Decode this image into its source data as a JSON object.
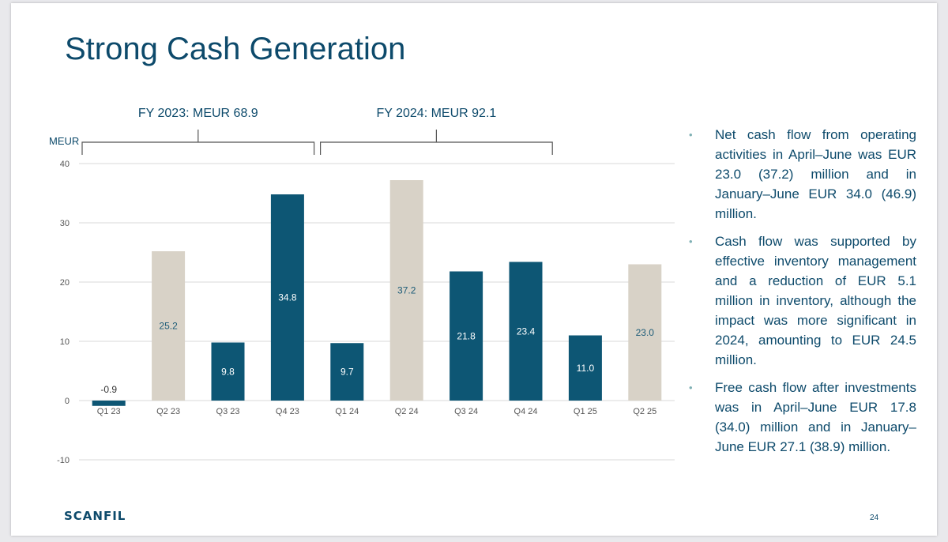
{
  "slide": {
    "title": "Strong Cash Generation",
    "logo": "SCANFIL",
    "page_number": "24"
  },
  "bullets": [
    "Net cash flow from operating activities in April–June was EUR 23.0 (37.2) million and in January–June EUR 34.0 (46.9) million.",
    "Cash flow was supported by effective inventory management and a reduction of EUR 5.1 million in inventory, although the impact was more significant in 2024, amounting to EUR 24.5 million.",
    "Free cash flow after investments was in April–June EUR 17.8 (34.0) million and in January–June EUR 27.1 (38.9) million."
  ],
  "chart_data": {
    "type": "bar",
    "ylabel": "MEUR",
    "ylim": [
      -10,
      40
    ],
    "yticks": [
      -10,
      0,
      10,
      20,
      30,
      40
    ],
    "grid": true,
    "categories": [
      "Q1 23",
      "Q2 23",
      "Q3 23",
      "Q4 23",
      "Q1 24",
      "Q2 24",
      "Q3 24",
      "Q4 24",
      "Q1 25",
      "Q2 25"
    ],
    "values": [
      -0.9,
      25.2,
      9.8,
      34.8,
      9.7,
      37.2,
      21.8,
      23.4,
      11.0,
      23.0
    ],
    "value_labels": [
      "-0.9",
      "25.2",
      "9.8",
      "34.8",
      "9.7",
      "37.2",
      "21.8",
      "23.4",
      "11.0",
      "23.0"
    ],
    "bar_colors": [
      "#0d5674",
      "#d8d2c7",
      "#0d5674",
      "#0d5674",
      "#0d5674",
      "#d8d2c7",
      "#0d5674",
      "#0d5674",
      "#0d5674",
      "#d8d2c7"
    ],
    "annotations": [
      {
        "text": "FY 2023: MEUR 68.9",
        "from": "Q1 23",
        "to": "Q4 23"
      },
      {
        "text": "FY 2024: MEUR 92.1",
        "from": "Q1 24",
        "to": "Q4 24"
      }
    ]
  },
  "colors": {
    "title": "#0d4a6b",
    "dark_bar": "#0d5674",
    "light_bar": "#d8d2c7",
    "label_on_dark": "#ffffff",
    "label_on_light": "#1d5c78",
    "grid": "#d9d9d9",
    "axis_text": "#555555",
    "bullet_dot": "#7fb0b4"
  }
}
